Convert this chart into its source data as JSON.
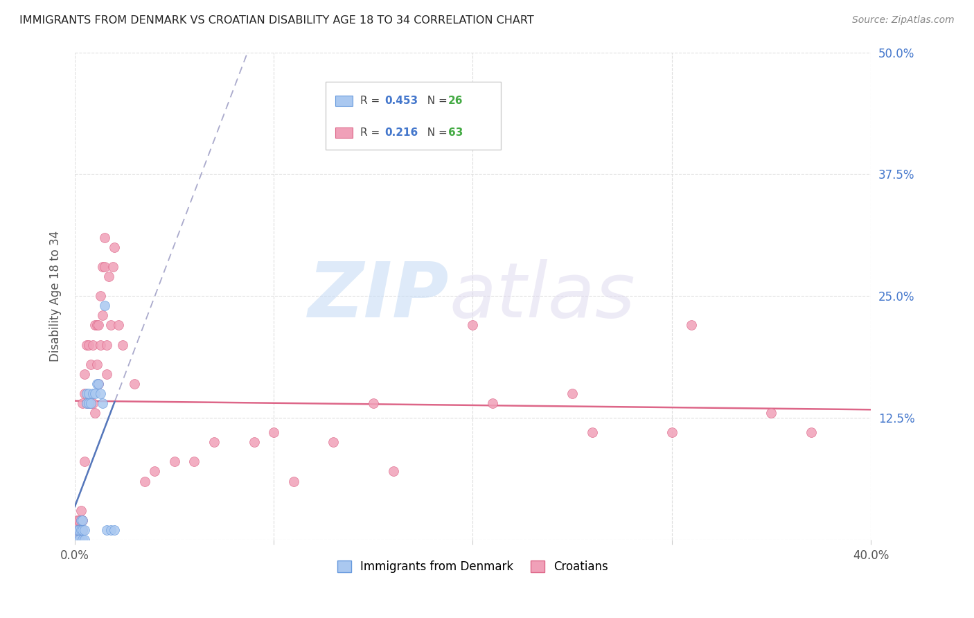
{
  "title": "IMMIGRANTS FROM DENMARK VS CROATIAN DISABILITY AGE 18 TO 34 CORRELATION CHART",
  "source": "Source: ZipAtlas.com",
  "ylabel": "Disability Age 18 to 34",
  "x_min": 0.0,
  "x_max": 0.4,
  "y_min": 0.0,
  "y_max": 0.5,
  "x_ticks": [
    0.0,
    0.1,
    0.2,
    0.3,
    0.4
  ],
  "x_tick_labels": [
    "0.0%",
    "",
    "",
    "",
    "40.0%"
  ],
  "y_ticks": [
    0.0,
    0.125,
    0.25,
    0.375,
    0.5
  ],
  "y_tick_labels_right": [
    "",
    "12.5%",
    "25.0%",
    "37.5%",
    "50.0%"
  ],
  "denmark_color": "#aac8f0",
  "croatian_color": "#f0a0b8",
  "denmark_edge_color": "#6699dd",
  "croatian_edge_color": "#dd6688",
  "trendline_denmark_color": "#5577bb",
  "trendline_croatian_color": "#dd6688",
  "trendline_gray_color": "#aaaacc",
  "tick_label_color": "#4477cc",
  "denmark_R": 0.453,
  "denmark_N": 26,
  "croatian_R": 0.216,
  "croatian_N": 63,
  "denmark_x": [
    0.001,
    0.001,
    0.002,
    0.002,
    0.003,
    0.003,
    0.004,
    0.004,
    0.004,
    0.005,
    0.005,
    0.006,
    0.006,
    0.007,
    0.007,
    0.008,
    0.009,
    0.01,
    0.011,
    0.012,
    0.013,
    0.014,
    0.015,
    0.016,
    0.018,
    0.02
  ],
  "denmark_y": [
    0.0,
    0.01,
    0.0,
    0.01,
    0.01,
    0.02,
    0.0,
    0.01,
    0.02,
    0.0,
    0.01,
    0.14,
    0.15,
    0.14,
    0.15,
    0.14,
    0.15,
    0.15,
    0.16,
    0.16,
    0.15,
    0.14,
    0.24,
    0.01,
    0.01,
    0.01
  ],
  "croatian_x": [
    0.001,
    0.001,
    0.001,
    0.002,
    0.002,
    0.002,
    0.003,
    0.003,
    0.003,
    0.004,
    0.004,
    0.004,
    0.005,
    0.005,
    0.005,
    0.006,
    0.006,
    0.007,
    0.007,
    0.008,
    0.008,
    0.009,
    0.009,
    0.01,
    0.01,
    0.011,
    0.011,
    0.012,
    0.012,
    0.013,
    0.013,
    0.014,
    0.014,
    0.015,
    0.015,
    0.016,
    0.016,
    0.017,
    0.018,
    0.019,
    0.02,
    0.022,
    0.024,
    0.03,
    0.035,
    0.04,
    0.05,
    0.06,
    0.07,
    0.09,
    0.1,
    0.11,
    0.13,
    0.15,
    0.16,
    0.2,
    0.21,
    0.25,
    0.26,
    0.3,
    0.31,
    0.35,
    0.37
  ],
  "croatian_y": [
    0.0,
    0.01,
    0.02,
    0.0,
    0.01,
    0.02,
    0.01,
    0.02,
    0.03,
    0.01,
    0.02,
    0.14,
    0.08,
    0.15,
    0.17,
    0.14,
    0.2,
    0.14,
    0.2,
    0.14,
    0.18,
    0.14,
    0.2,
    0.13,
    0.22,
    0.18,
    0.22,
    0.16,
    0.22,
    0.2,
    0.25,
    0.23,
    0.28,
    0.28,
    0.31,
    0.17,
    0.2,
    0.27,
    0.22,
    0.28,
    0.3,
    0.22,
    0.2,
    0.16,
    0.06,
    0.07,
    0.08,
    0.08,
    0.1,
    0.1,
    0.11,
    0.06,
    0.1,
    0.14,
    0.07,
    0.22,
    0.14,
    0.15,
    0.11,
    0.11,
    0.22,
    0.13,
    0.11
  ]
}
